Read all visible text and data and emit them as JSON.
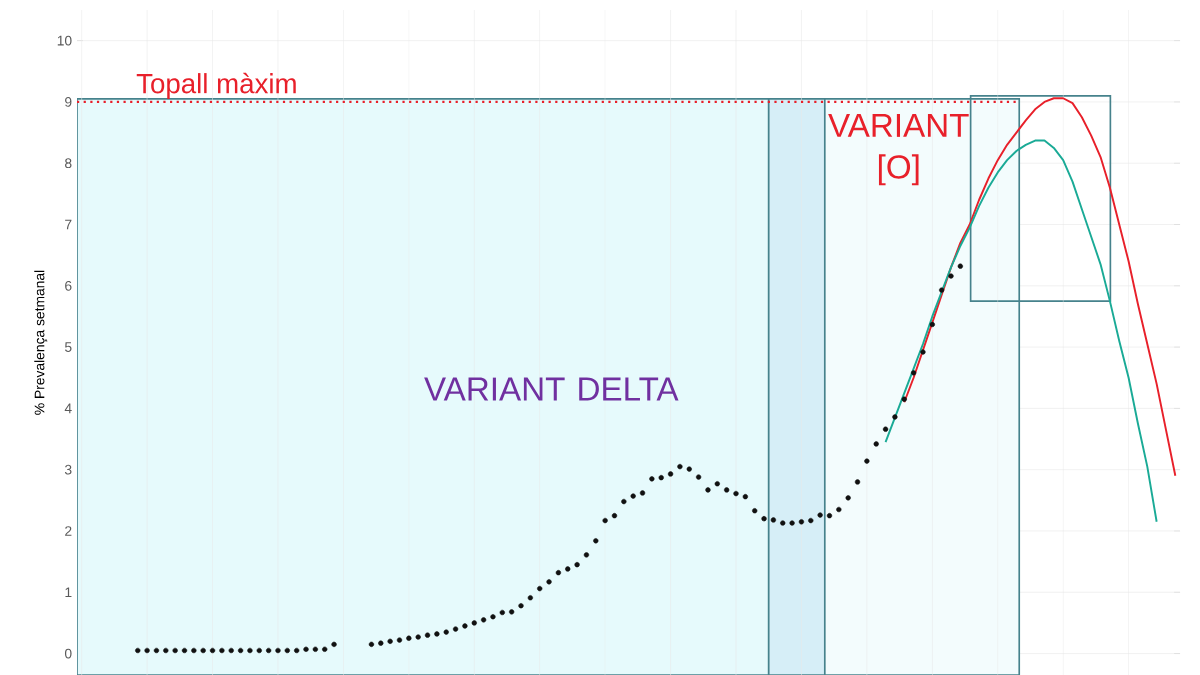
{
  "chart_data": {
    "type": "scatter",
    "ylabel": "% Prevalença setmanal",
    "categories": [
      null,
      null,
      null,
      null,
      null,
      null,
      null,
      null,
      null,
      null,
      null,
      null,
      null,
      null,
      null,
      null,
      null,
      null,
      null,
      null,
      null,
      null,
      null,
      null,
      null,
      null,
      null,
      null,
      null,
      null,
      null,
      null,
      null,
      null,
      null,
      null,
      null,
      null,
      null,
      null,
      null,
      null,
      null,
      null,
      null,
      null,
      null,
      null,
      null,
      null,
      null,
      null,
      null,
      null,
      null,
      null,
      null,
      null,
      null,
      null,
      null,
      null,
      null,
      null,
      null,
      null,
      null,
      null,
      null,
      null,
      null,
      null,
      null,
      null,
      null,
      null,
      null,
      null,
      null,
      null,
      null,
      null,
      null,
      null,
      null,
      null,
      null,
      null,
      null,
      null,
      null,
      null,
      null,
      null,
      null,
      null,
      null,
      null,
      null,
      null,
      null,
      null,
      null,
      null,
      null,
      null,
      null,
      null,
      null,
      null,
      null,
      null,
      null,
      null,
      null,
      null,
      null,
      null
    ],
    "series": [
      {
        "color": "#111111",
        "values": [
          null,
          null,
          null,
          null,
          null,
          null,
          0.05,
          0.05,
          0.05,
          0.05,
          0.05,
          0.05,
          0.05,
          0.05,
          0.05,
          0.05,
          0.05,
          0.05,
          0.05,
          0.05,
          0.05,
          0.05,
          0.05,
          0.05,
          0.07,
          0.07,
          0.07,
          0.15,
          null,
          null,
          null,
          0.15,
          0.17,
          0.2,
          0.22,
          0.25,
          0.27,
          0.3,
          0.32,
          0.35,
          0.4,
          0.45,
          0.5,
          0.55,
          0.6,
          0.67,
          0.68,
          0.78,
          0.91,
          1.06,
          1.17,
          1.32,
          1.38,
          1.45,
          1.61,
          1.84,
          2.17,
          2.25,
          2.48,
          2.57,
          2.62,
          2.85,
          2.87,
          2.93,
          3.05,
          3.01,
          2.88,
          2.67,
          2.77,
          2.67,
          2.61,
          2.56,
          2.33,
          2.2,
          2.18,
          2.13,
          2.13,
          2.15,
          2.17,
          2.26,
          2.25,
          2.35,
          2.54,
          2.8,
          3.14,
          3.42,
          3.66,
          3.86,
          4.15,
          4.58,
          4.92,
          5.37,
          5.93,
          6.16,
          6.32,
          null,
          null,
          null,
          null,
          null,
          null,
          null,
          null,
          null,
          null,
          null,
          null,
          null,
          null,
          null,
          null,
          null,
          null,
          null,
          null,
          null,
          null,
          null
        ]
      },
      {
        "type": "line",
        "marker": "none",
        "color": "#e8202a",
        "values": [
          null,
          null,
          null,
          null,
          null,
          null,
          null,
          null,
          null,
          null,
          null,
          null,
          null,
          null,
          null,
          null,
          null,
          null,
          null,
          null,
          null,
          null,
          null,
          null,
          null,
          null,
          null,
          null,
          null,
          null,
          null,
          null,
          null,
          null,
          null,
          null,
          null,
          null,
          null,
          null,
          null,
          null,
          null,
          null,
          null,
          null,
          null,
          null,
          null,
          null,
          null,
          null,
          null,
          null,
          null,
          null,
          null,
          null,
          null,
          null,
          null,
          null,
          null,
          null,
          null,
          null,
          null,
          null,
          null,
          null,
          null,
          null,
          null,
          null,
          null,
          null,
          null,
          null,
          null,
          null,
          null,
          null,
          null,
          null,
          null,
          null,
          null,
          null,
          4.1,
          4.5,
          4.95,
          5.4,
          5.85,
          6.3,
          6.7,
          7.0,
          7.4,
          7.75,
          8.05,
          8.3,
          8.5,
          8.7,
          8.88,
          9.0,
          9.06,
          9.06,
          8.98,
          8.75,
          8.45,
          8.1,
          7.6,
          7.0,
          6.4,
          5.7,
          5.05,
          4.4,
          3.65,
          2.9
        ]
      },
      {
        "type": "line",
        "marker": "none",
        "color": "#1aaa96",
        "values": [
          null,
          null,
          null,
          null,
          null,
          null,
          null,
          null,
          null,
          null,
          null,
          null,
          null,
          null,
          null,
          null,
          null,
          null,
          null,
          null,
          null,
          null,
          null,
          null,
          null,
          null,
          null,
          null,
          null,
          null,
          null,
          null,
          null,
          null,
          null,
          null,
          null,
          null,
          null,
          null,
          null,
          null,
          null,
          null,
          null,
          null,
          null,
          null,
          null,
          null,
          null,
          null,
          null,
          null,
          null,
          null,
          null,
          null,
          null,
          null,
          null,
          null,
          null,
          null,
          null,
          null,
          null,
          null,
          null,
          null,
          null,
          null,
          null,
          null,
          null,
          null,
          null,
          null,
          null,
          null,
          null,
          null,
          null,
          null,
          null,
          null,
          3.45,
          3.85,
          4.25,
          4.65,
          5.05,
          5.5,
          5.9,
          6.3,
          6.65,
          6.95,
          7.3,
          7.6,
          7.85,
          8.05,
          8.2,
          8.3,
          8.37,
          8.37,
          8.25,
          8.05,
          7.7,
          7.25,
          6.8,
          6.35,
          5.75,
          5.1,
          4.5,
          3.75,
          3.05,
          2.15,
          null,
          null
        ]
      }
    ],
    "ylim": [
      -0.35,
      10.5
    ],
    "yticks": [
      0,
      1,
      2,
      3,
      4,
      5,
      6,
      7,
      8,
      9,
      10
    ],
    "tick_labels": "y",
    "grid": true,
    "marker": "circle",
    "ref_lines": [
      {
        "axis": "y",
        "value": 9,
        "label": "Topall màxim",
        "color": "#e8202a",
        "line_style": "dotted"
      }
    ],
    "annotations": [
      "VARIANT DELTA",
      "VARIANT [O]"
    ]
  }
}
